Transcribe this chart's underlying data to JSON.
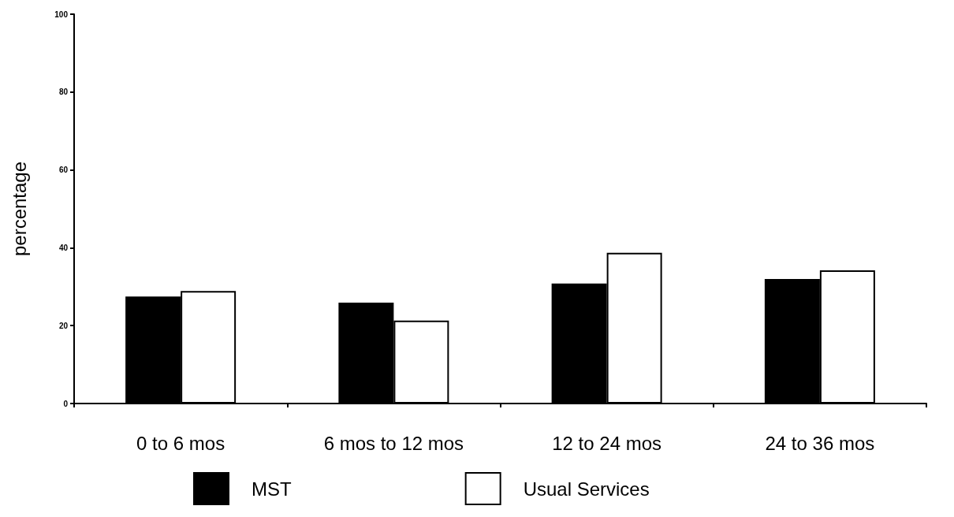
{
  "chart_data": {
    "type": "bar",
    "ylabel": "percentage",
    "categories": [
      "0 to 6 mos",
      "6 mos to 12 mos",
      "12 to 24 mos",
      "24 to 36 mos"
    ],
    "series": [
      {
        "name": "MST",
        "color": "#000000",
        "values": [
          27.5,
          25.9,
          30.8,
          32.0
        ]
      },
      {
        "name": "Usual Services",
        "color": "#ffffff",
        "values": [
          28.9,
          21.3,
          38.7,
          34.2
        ]
      }
    ],
    "ylim": [
      0,
      100
    ],
    "yticks": [
      0,
      20,
      40,
      60,
      80,
      100
    ],
    "grid": false,
    "legend": "bottom"
  }
}
